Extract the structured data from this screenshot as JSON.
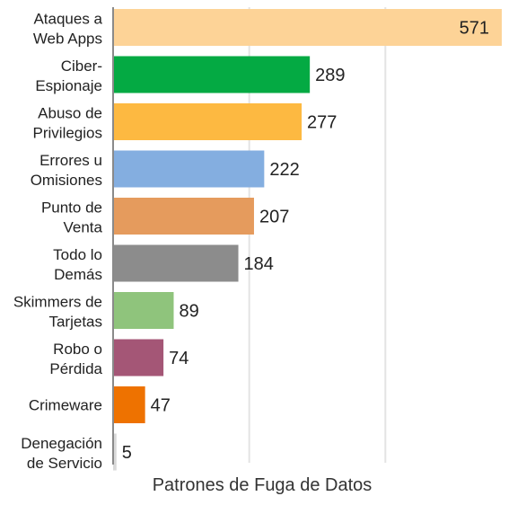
{
  "chart_data": {
    "type": "bar",
    "orientation": "horizontal",
    "xlabel": "Patrones de Fuga de Datos",
    "xlim": [
      0,
      571
    ],
    "grid": true,
    "categories": [
      [
        "Ataques a",
        "Web Apps"
      ],
      [
        "Ciber-",
        "Espionaje"
      ],
      [
        "Abuso de",
        "Privilegios"
      ],
      [
        "Errores u",
        "Omisiones"
      ],
      [
        "Punto de",
        "Venta"
      ],
      [
        "Todo lo",
        "Demás"
      ],
      [
        "Skimmers de",
        "Tarjetas"
      ],
      [
        "Robo o",
        "Pérdida"
      ],
      [
        "Crimeware"
      ],
      [
        "Denegación",
        "de Servicio"
      ]
    ],
    "values": [
      571,
      289,
      277,
      222,
      207,
      184,
      89,
      74,
      47,
      5
    ],
    "colors": [
      "#FDD397",
      "#04AA43",
      "#FDB941",
      "#84AEE0",
      "#E59B5D",
      "#8C8C8C",
      "#8FC47C",
      "#A45676",
      "#EE7200",
      "#D9D9D9"
    ]
  }
}
